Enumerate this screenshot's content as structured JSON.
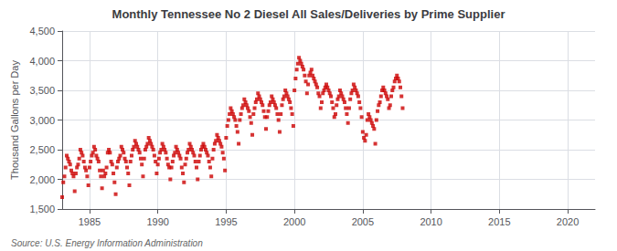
{
  "chart_data": {
    "type": "scatter",
    "title": "Monthly Tennessee No 2 Diesel All Sales/Deliveries by Prime Supplier",
    "y_label": "Thousand Gallons per Day",
    "annotations": [
      "Source: U.S. Energy Information Administration"
    ],
    "color": "#cc0000",
    "marker": "square",
    "grid": true,
    "xlim": [
      1983,
      2022
    ],
    "ylim": [
      1500,
      4500
    ],
    "xticks": [
      1985,
      1990,
      1995,
      2000,
      2005,
      2010,
      2015,
      2020
    ],
    "yticks": [
      {
        "value": 1500,
        "label": "1,500"
      },
      {
        "value": 2000,
        "label": "2,000"
      },
      {
        "value": 2500,
        "label": "2,500"
      },
      {
        "value": 3000,
        "label": "3,000"
      },
      {
        "value": 3500,
        "label": "3,500"
      },
      {
        "value": 4000,
        "label": "4,000"
      },
      {
        "value": 4500,
        "label": "4,500"
      }
    ],
    "x": [
      1983.0,
      1983.083,
      1983.167,
      1983.25,
      1983.333,
      1983.417,
      1983.5,
      1983.583,
      1983.667,
      1983.75,
      1983.833,
      1983.917,
      1984.0,
      1984.083,
      1984.167,
      1984.25,
      1984.333,
      1984.417,
      1984.5,
      1984.583,
      1984.667,
      1984.75,
      1984.833,
      1984.917,
      1985.0,
      1985.083,
      1985.167,
      1985.25,
      1985.333,
      1985.417,
      1985.5,
      1985.583,
      1985.667,
      1985.75,
      1985.833,
      1985.917,
      1986.0,
      1986.083,
      1986.167,
      1986.25,
      1986.333,
      1986.417,
      1986.5,
      1986.583,
      1986.667,
      1986.75,
      1986.833,
      1986.917,
      1987.0,
      1987.083,
      1987.167,
      1987.25,
      1987.333,
      1987.417,
      1987.5,
      1987.583,
      1987.667,
      1987.75,
      1987.833,
      1987.917,
      1988.0,
      1988.083,
      1988.167,
      1988.25,
      1988.333,
      1988.417,
      1988.5,
      1988.583,
      1988.667,
      1988.75,
      1988.833,
      1988.917,
      1989.0,
      1989.083,
      1989.167,
      1989.25,
      1989.333,
      1989.417,
      1989.5,
      1989.583,
      1989.667,
      1989.75,
      1989.833,
      1989.917,
      1990.0,
      1990.083,
      1990.167,
      1990.25,
      1990.333,
      1990.417,
      1990.5,
      1990.583,
      1990.667,
      1990.75,
      1990.833,
      1990.917,
      1991.0,
      1991.083,
      1991.167,
      1991.25,
      1991.333,
      1991.417,
      1991.5,
      1991.583,
      1991.667,
      1991.75,
      1991.833,
      1991.917,
      1992.0,
      1992.083,
      1992.167,
      1992.25,
      1992.333,
      1992.417,
      1992.5,
      1992.583,
      1992.667,
      1992.75,
      1992.833,
      1992.917,
      1993.0,
      1993.083,
      1993.167,
      1993.25,
      1993.333,
      1993.417,
      1993.5,
      1993.583,
      1993.667,
      1993.75,
      1993.833,
      1993.917,
      1994.0,
      1994.083,
      1994.167,
      1994.25,
      1994.333,
      1994.417,
      1994.5,
      1994.583,
      1994.667,
      1994.75,
      1994.833,
      1994.917,
      1995.0,
      1995.083,
      1995.167,
      1995.25,
      1995.333,
      1995.417,
      1995.5,
      1995.583,
      1995.667,
      1995.75,
      1995.833,
      1995.917,
      1996.0,
      1996.083,
      1996.167,
      1996.25,
      1996.333,
      1996.417,
      1996.5,
      1996.583,
      1996.667,
      1996.75,
      1996.833,
      1996.917,
      1997.0,
      1997.083,
      1997.167,
      1997.25,
      1997.333,
      1997.417,
      1997.5,
      1997.583,
      1997.667,
      1997.75,
      1997.833,
      1997.917,
      1998.0,
      1998.083,
      1998.167,
      1998.25,
      1998.333,
      1998.417,
      1998.5,
      1998.583,
      1998.667,
      1998.75,
      1998.833,
      1998.917,
      1999.0,
      1999.083,
      1999.167,
      1999.25,
      1999.333,
      1999.417,
      1999.5,
      1999.583,
      1999.667,
      1999.75,
      1999.833,
      1999.917,
      2000.0,
      2000.083,
      2000.167,
      2000.25,
      2000.333,
      2000.417,
      2000.5,
      2000.583,
      2000.667,
      2000.75,
      2000.833,
      2000.917,
      2001.0,
      2001.083,
      2001.167,
      2001.25,
      2001.333,
      2001.417,
      2001.5,
      2001.583,
      2001.667,
      2001.75,
      2001.833,
      2001.917,
      2002.0,
      2002.083,
      2002.167,
      2002.25,
      2002.333,
      2002.417,
      2002.5,
      2002.583,
      2002.667,
      2002.75,
      2002.833,
      2002.917,
      2003.0,
      2003.083,
      2003.167,
      2003.25,
      2003.333,
      2003.417,
      2003.5,
      2003.583,
      2003.667,
      2003.75,
      2003.833,
      2003.917,
      2004.0,
      2004.083,
      2004.167,
      2004.25,
      2004.333,
      2004.417,
      2004.5,
      2004.583,
      2004.667,
      2004.75,
      2004.833,
      2004.917,
      2005.0,
      2005.083,
      2005.167,
      2005.25,
      2005.333,
      2005.417,
      2005.5,
      2005.583,
      2005.667,
      2005.75,
      2005.833,
      2005.917,
      2006.0,
      2006.083,
      2006.167,
      2006.25,
      2006.333,
      2006.417,
      2006.5,
      2006.583,
      2006.667,
      2006.75,
      2006.833,
      2006.917,
      2007.0,
      2007.083,
      2007.167,
      2007.25,
      2007.333,
      2007.417,
      2007.5,
      2007.583,
      2007.667,
      2007.75,
      2007.833,
      2007.917
    ],
    "values": [
      1700,
      1950,
      2050,
      2200,
      2400,
      2350,
      2300,
      2250,
      2150,
      2100,
      2050,
      1800,
      2100,
      2200,
      2250,
      2350,
      2500,
      2450,
      2400,
      2300,
      2200,
      2150,
      2050,
      1900,
      2200,
      2300,
      2400,
      2450,
      2550,
      2500,
      2400,
      2350,
      2300,
      2150,
      2050,
      1850,
      2150,
      2050,
      2100,
      2200,
      2450,
      2500,
      2450,
      2300,
      2250,
      2100,
      1950,
      1750,
      2200,
      2300,
      2350,
      2400,
      2550,
      2500,
      2450,
      2350,
      2300,
      2200,
      2100,
      1900,
      2300,
      2400,
      2500,
      2550,
      2650,
      2600,
      2550,
      2500,
      2450,
      2350,
      2250,
      2050,
      2350,
      2500,
      2550,
      2600,
      2700,
      2650,
      2600,
      2550,
      2500,
      2400,
      2300,
      2100,
      2250,
      2350,
      2450,
      2500,
      2600,
      2550,
      2500,
      2450,
      2350,
      2250,
      2200,
      2000,
      2200,
      2300,
      2400,
      2450,
      2550,
      2500,
      2450,
      2400,
      2350,
      2200,
      2100,
      1950,
      2250,
      2350,
      2450,
      2500,
      2600,
      2550,
      2500,
      2450,
      2400,
      2300,
      2200,
      2000,
      2300,
      2400,
      2500,
      2550,
      2600,
      2550,
      2500,
      2450,
      2400,
      2300,
      2200,
      2050,
      2350,
      2500,
      2600,
      2650,
      2750,
      2700,
      2650,
      2600,
      2550,
      2450,
      2350,
      2150,
      2700,
      2900,
      3000,
      3100,
      3200,
      3150,
      3100,
      3050,
      3000,
      2900,
      2800,
      2600,
      3000,
      3100,
      3200,
      3250,
      3350,
      3300,
      3250,
      3200,
      3150,
      3050,
      2950,
      2750,
      3100,
      3200,
      3300,
      3350,
      3450,
      3400,
      3350,
      3300,
      3250,
      3150,
      3050,
      2850,
      3050,
      3150,
      3250,
      3300,
      3400,
      3350,
      3300,
      3250,
      3200,
      3100,
      3000,
      2800,
      3100,
      3250,
      3350,
      3400,
      3500,
      3450,
      3400,
      3350,
      3300,
      3200,
      3100,
      2900,
      3500,
      3700,
      3850,
      3950,
      4050,
      4000,
      3950,
      3900,
      3850,
      3750,
      3650,
      3450,
      3600,
      3750,
      3800,
      3850,
      3750,
      3700,
      3650,
      3600,
      3550,
      3450,
      3400,
      3200,
      3300,
      3450,
      3500,
      3550,
      3600,
      3550,
      3500,
      3450,
      3400,
      3300,
      3200,
      3050,
      3100,
      3250,
      3350,
      3400,
      3500,
      3450,
      3400,
      3350,
      3300,
      3200,
      3100,
      2950,
      3200,
      3350,
      3450,
      3500,
      3600,
      3550,
      3500,
      3450,
      3400,
      3300,
      3200,
      3050,
      2800,
      2700,
      2650,
      2750,
      3000,
      3100,
      3050,
      3000,
      2950,
      2900,
      2850,
      2600,
      3000,
      3150,
      3250,
      3300,
      3400,
      3500,
      3550,
      3500,
      3450,
      3400,
      3350,
      3200,
      3250,
      3400,
      3500,
      3550,
      3650,
      3700,
      3750,
      3700,
      3650,
      3550,
      3400,
      3200
    ]
  }
}
